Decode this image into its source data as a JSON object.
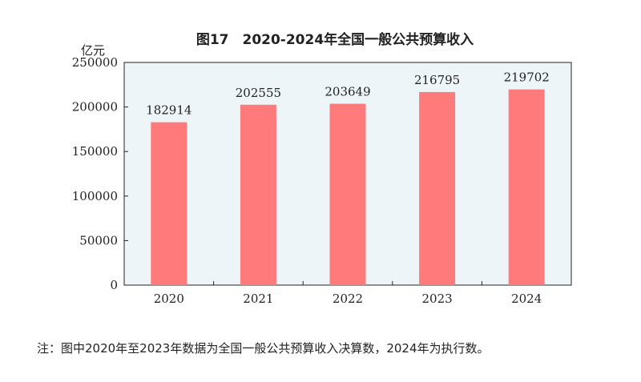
{
  "chart_data": {
    "type": "bar",
    "title": "图17　2020-2024年全国一般公共预算收入",
    "unit": "亿元",
    "categories": [
      "2020",
      "2021",
      "2022",
      "2023",
      "2024"
    ],
    "values": [
      182914,
      202555,
      203649,
      216795,
      219702
    ],
    "data_labels": [
      "182914",
      "202555",
      "203649",
      "216795",
      "219702"
    ],
    "yticks": [
      "0",
      "50000",
      "100000",
      "150000",
      "200000",
      "250000"
    ],
    "ylim": [
      0,
      250000
    ],
    "grid": false,
    "bar_color": "#ff7b7b",
    "plot_background": "#eef5f8"
  },
  "note": "注：图中2020年至2023年数据为全国一般公共预算收入决算数，2024年为执行数。"
}
